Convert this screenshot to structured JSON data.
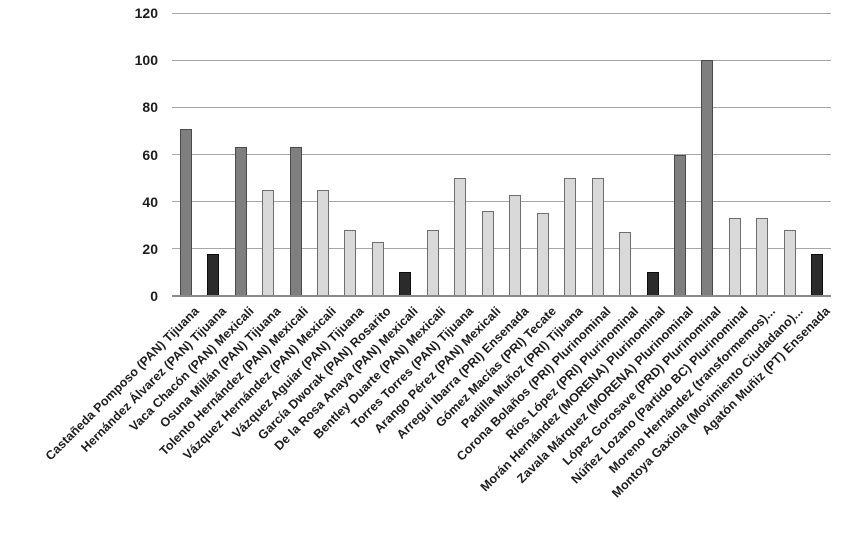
{
  "chart_data": {
    "type": "bar",
    "title": "",
    "xlabel": "",
    "ylabel": "",
    "ylim": [
      0,
      120
    ],
    "yticks": [
      0,
      20,
      40,
      60,
      80,
      100,
      120
    ],
    "grid": true,
    "legend": false,
    "categories": [
      "Castañeda Pomposo (PAN) Tijuana",
      "Hernández Álvarez (PAN) Tijuana",
      "Vaca Chacón (PAN) Mexicali",
      "Osuna Millán (PAN) Tijuana",
      "Tolento Hernández (PAN) Mexicali",
      "Vázquez Hernández (PAN) Mexicali",
      "Vázquez Aguiar (PAN) Tijuana",
      "García Dworak (PAN) Rosarito",
      "De la Rosa Anaya (PAN) Mexicali",
      "Bentley Duarte (PAN) Mexicali",
      "Torres Torres (PAN) Tijuana",
      "Arango Pérez (PAN) Mexicali",
      "Arregui Ibarra (PRI) Ensenada",
      "Gómez Macías (PRI) Tecate",
      "Padilla Muñoz (PRI) Tijuana",
      "Corona Bolaños (PRI) Plurinominal",
      "Ríos López (PRI) Plurinominal",
      "Morán Hernández (MORENA) Plurinominal",
      "Zavala Márquez (MORENA) Plurinominal",
      "López Gorosave (PRD) Plurinominal",
      "Núñez Lozano (Partido BC) Plurinominal",
      "Moreno Hernández (transformemos)...",
      "Montoya Gaxiola (Movimiento Ciudadano)...",
      "Agatón Muñiz (PT) Ensenada"
    ],
    "values": [
      71,
      18,
      63,
      45,
      63,
      45,
      28,
      23,
      10,
      28,
      50,
      36,
      43,
      35,
      50,
      50,
      27,
      10,
      60,
      100,
      33,
      33,
      28,
      18
    ],
    "bar_shades": [
      "medium",
      "dark",
      "medium",
      "light",
      "medium",
      "light",
      "light",
      "light",
      "dark",
      "light",
      "light",
      "light",
      "light",
      "light",
      "light",
      "light",
      "light",
      "dark",
      "medium",
      "medium",
      "light",
      "light",
      "light",
      "dark"
    ],
    "shade_colors": {
      "medium": {
        "fill": "#7f7f7f",
        "border": "#4a4a4a"
      },
      "light": {
        "fill": "#d9d9d9",
        "border": "#6e6e6e"
      },
      "dark": {
        "fill": "#2b2b2b",
        "border": "#0d0d0d"
      }
    },
    "gridline_color": "#a6a6a6",
    "axis_line_color": "#898989",
    "background_color": "#ffffff"
  }
}
